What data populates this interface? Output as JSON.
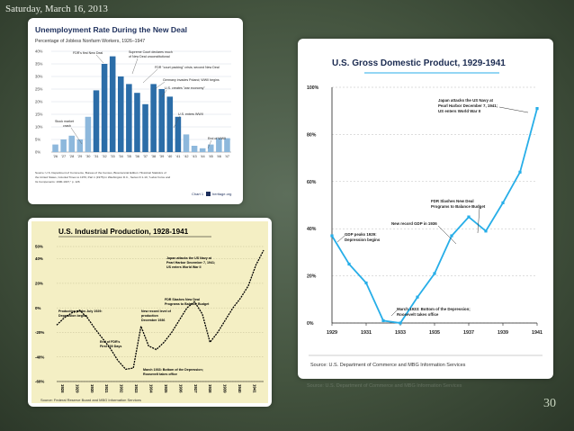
{
  "slide": {
    "date": "Saturday, March 16, 2013",
    "page_number": "30"
  },
  "colors": {
    "unemp_dark": "#2b6da8",
    "unemp_light": "#8db8dc",
    "gdp_line": "#27aee8",
    "ind_line": "#000000"
  },
  "chart_data": [
    {
      "type": "bar",
      "title": "Unemployment Rate During the New Deal",
      "subtitle": "Percentage of Jobless Nonfarm Workers, 1926–1947",
      "categories": [
        "'26",
        "'27",
        "'28",
        "'29",
        "'30",
        "'31",
        "'32",
        "'33",
        "'34",
        "'35",
        "'36",
        "'37",
        "'38",
        "'39",
        "'40",
        "'41",
        "'42",
        "'43",
        "'44",
        "'45",
        "'46",
        "'47"
      ],
      "values": [
        3,
        5,
        6.5,
        5,
        14,
        24.5,
        35,
        38,
        30,
        27,
        23.5,
        19,
        27,
        25,
        22,
        14,
        7,
        2.5,
        1.5,
        3,
        5.5,
        5.5
      ],
      "ylim": [
        0,
        40
      ],
      "yticks": [
        "0%",
        "5%",
        "10%",
        "15%",
        "20%",
        "25%",
        "30%",
        "35%",
        "40%"
      ],
      "annotations": [
        "FDR's first New Deal",
        "Supreme Court declares much of New Deal unconstitutional",
        "FDR \"court packing\" crisis; second New Deal",
        "Germany invades Poland; WWII begins",
        "U.S. creates \"war economy\"",
        "U.S. enters WWII",
        "End of WWII",
        "Stock market crash"
      ],
      "source": "Source: U.S. Department of Commerce, Bureau of the Census, Bicentennial Edition: Historical Statistics of the United States, Colonial Times to 1970, Part 1 (1975) in Washington D.C., Series D 1-10, \"Labor Force and Its Components: 1900-1947,\" p. 126",
      "footer": "Chart 1",
      "brand": "heritage.org"
    },
    {
      "type": "line",
      "title": "U.S. Industrial Production, 1928-1941",
      "x_labels": [
        "1928",
        "1929",
        "1930",
        "1931",
        "1932",
        "1933",
        "1934",
        "1935",
        "1936",
        "1937",
        "1938",
        "1939",
        "1940",
        "1941"
      ],
      "x": [
        1928.0,
        1928.5,
        1929.0,
        1929.5,
        1930.0,
        1930.5,
        1931.0,
        1931.5,
        1932.0,
        1932.5,
        1933.0,
        1933.5,
        1934.0,
        1934.5,
        1935.0,
        1935.5,
        1936.0,
        1936.5,
        1937.0,
        1937.5,
        1938.0,
        1938.5,
        1939.0,
        1939.5,
        1940.0,
        1940.5,
        1941.0,
        1941.5
      ],
      "values": [
        -14,
        -8,
        -4,
        -2,
        -8,
        -17,
        -25,
        -33,
        -43,
        -50,
        -49,
        -15,
        -31,
        -34,
        -28,
        -20,
        -10,
        0,
        5,
        -5,
        -28,
        -20,
        -10,
        0,
        8,
        18,
        35,
        47
      ],
      "ylim": [
        -60,
        50
      ],
      "yticks": [
        "-60%",
        "-40%",
        "-20%",
        "0%",
        "20%",
        "40%",
        "50%"
      ],
      "annotations": [
        "Japan attacks the US Navy at Pearl Harbor December 7, 1941; US enters World War II",
        "FDR Slashes New Deal Programs to Balance Budget",
        "Production peaks July 1929: Depression begins",
        "New record level of production December 1936",
        "End of FDR's First 100 Days",
        "March 1933: Bottom of the Depression; Roosevelt takes office"
      ],
      "source": "Source: Federal Reserve Board and MBG Information Services"
    },
    {
      "type": "line",
      "title": "U.S. Gross Domestic Product, 1929-1941",
      "x": [
        1929,
        1930,
        1931,
        1932,
        1933,
        1934,
        1935,
        1936,
        1937,
        1938,
        1939,
        1940,
        1941
      ],
      "values": [
        37,
        25,
        17,
        1,
        0,
        11,
        21,
        37,
        45,
        39,
        51,
        64,
        91
      ],
      "ylim": [
        0,
        100
      ],
      "yticks": [
        "0%",
        "20%",
        "40%",
        "60%",
        "80%",
        "100%"
      ],
      "xticks": [
        "1929",
        "1931",
        "1933",
        "1935",
        "1937",
        "1939",
        "1941"
      ],
      "annotations": [
        "Japan attacks the US Navy at Pearl Harbor December 7, 1941; US enters World War II",
        "FDR Slashes New Deal Programs to Balance Budget",
        "New record GDP in 1936",
        "GDP peaks 1929: Depression begins",
        "March 1933: Bottom of the Depression; Roosevelt takes office"
      ],
      "source": "Source: U.S. Department of Commerce and MBG Information Services",
      "reflection": "Source: U.S. Department of Commerce and MBG Information Services"
    }
  ]
}
